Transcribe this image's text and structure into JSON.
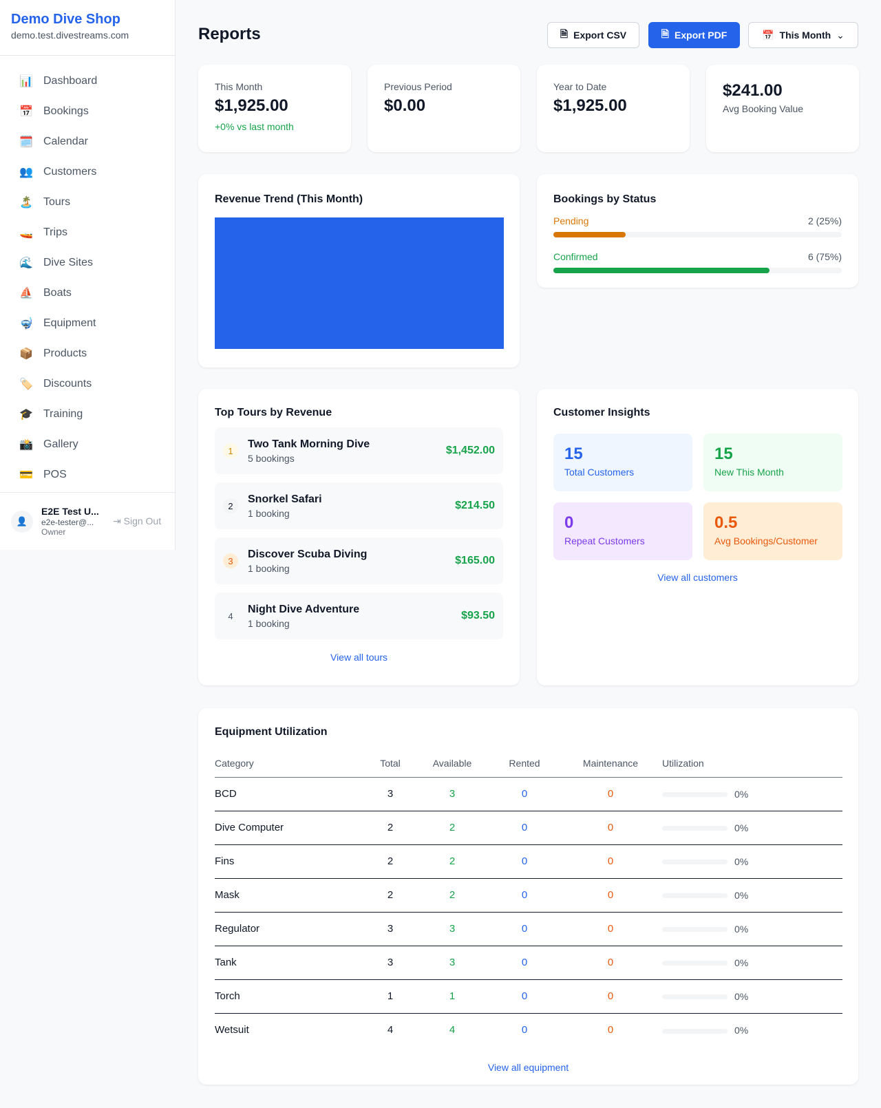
{
  "sidebar": {
    "brand": "Demo Dive Shop",
    "domain": "demo.test.divestreams.com",
    "items": [
      {
        "icon": "📊",
        "label": "Dashboard"
      },
      {
        "icon": "📅",
        "label": "Bookings"
      },
      {
        "icon": "🗓️",
        "label": "Calendar"
      },
      {
        "icon": "👥",
        "label": "Customers"
      },
      {
        "icon": "🏝️",
        "label": "Tours"
      },
      {
        "icon": "🚤",
        "label": "Trips"
      },
      {
        "icon": "🌊",
        "label": "Dive Sites"
      },
      {
        "icon": "⛵",
        "label": "Boats"
      },
      {
        "icon": "🤿",
        "label": "Equipment"
      },
      {
        "icon": "📦",
        "label": "Products"
      },
      {
        "icon": "🏷️",
        "label": "Discounts"
      },
      {
        "icon": "🎓",
        "label": "Training"
      },
      {
        "icon": "📸",
        "label": "Gallery"
      },
      {
        "icon": "💳",
        "label": "POS"
      }
    ],
    "user": {
      "name": "E2E Test U...",
      "email": "e2e-tester@...",
      "role": "Owner",
      "sign_out": "Sign Out"
    }
  },
  "header": {
    "title": "Reports",
    "export_csv": "Export CSV",
    "export_pdf": "Export PDF",
    "period": "This Month"
  },
  "stats": [
    {
      "label": "This Month",
      "value": "$1,925.00",
      "change": "+0% vs last month"
    },
    {
      "label": "Previous Period",
      "value": "$0.00"
    },
    {
      "label": "Year to Date",
      "value": "$1,925.00"
    },
    {
      "label": "Avg Booking Value",
      "value": "$241.00"
    }
  ],
  "revenue_trend": {
    "title": "Revenue Trend (This Month)",
    "color": "#2563eb"
  },
  "bookings_by_status": {
    "title": "Bookings by Status",
    "items": [
      {
        "label": "Pending",
        "value": "2 (25%)",
        "percent": 25,
        "color": "#d97706"
      },
      {
        "label": "Confirmed",
        "value": "6 (75%)",
        "percent": 75,
        "color": "#16a34a"
      }
    ]
  },
  "top_tours": {
    "title": "Top Tours by Revenue",
    "link": "View all tours",
    "items": [
      {
        "rank": "1",
        "name": "Two Tank Morning Dive",
        "bookings": "5 bookings",
        "revenue": "$1,452.00"
      },
      {
        "rank": "2",
        "name": "Snorkel Safari",
        "bookings": "1 booking",
        "revenue": "$214.50"
      },
      {
        "rank": "3",
        "name": "Discover Scuba Diving",
        "bookings": "1 booking",
        "revenue": "$165.00"
      },
      {
        "rank": "4",
        "name": "Night Dive Adventure",
        "bookings": "1 booking",
        "revenue": "$93.50"
      }
    ]
  },
  "customer_insights": {
    "title": "Customer Insights",
    "link": "View all customers",
    "items": [
      {
        "value": "15",
        "label": "Total Customers"
      },
      {
        "value": "15",
        "label": "New This Month"
      },
      {
        "value": "0",
        "label": "Repeat Customers"
      },
      {
        "value": "0.5",
        "label": "Avg Bookings/Customer"
      }
    ]
  },
  "equipment": {
    "title": "Equipment Utilization",
    "link": "View all equipment",
    "columns": [
      "Category",
      "Total",
      "Available",
      "Rented",
      "Maintenance",
      "Utilization"
    ],
    "rows": [
      [
        "BCD",
        "3",
        "3",
        "0",
        "0",
        "0%"
      ],
      [
        "Dive Computer",
        "2",
        "2",
        "0",
        "0",
        "0%"
      ],
      [
        "Fins",
        "2",
        "2",
        "0",
        "0",
        "0%"
      ],
      [
        "Mask",
        "2",
        "2",
        "0",
        "0",
        "0%"
      ],
      [
        "Regulator",
        "3",
        "3",
        "0",
        "0",
        "0%"
      ],
      [
        "Tank",
        "3",
        "3",
        "0",
        "0",
        "0%"
      ],
      [
        "Torch",
        "1",
        "1",
        "0",
        "0",
        "0%"
      ],
      [
        "Wetsuit",
        "4",
        "4",
        "0",
        "0",
        "0%"
      ]
    ]
  }
}
